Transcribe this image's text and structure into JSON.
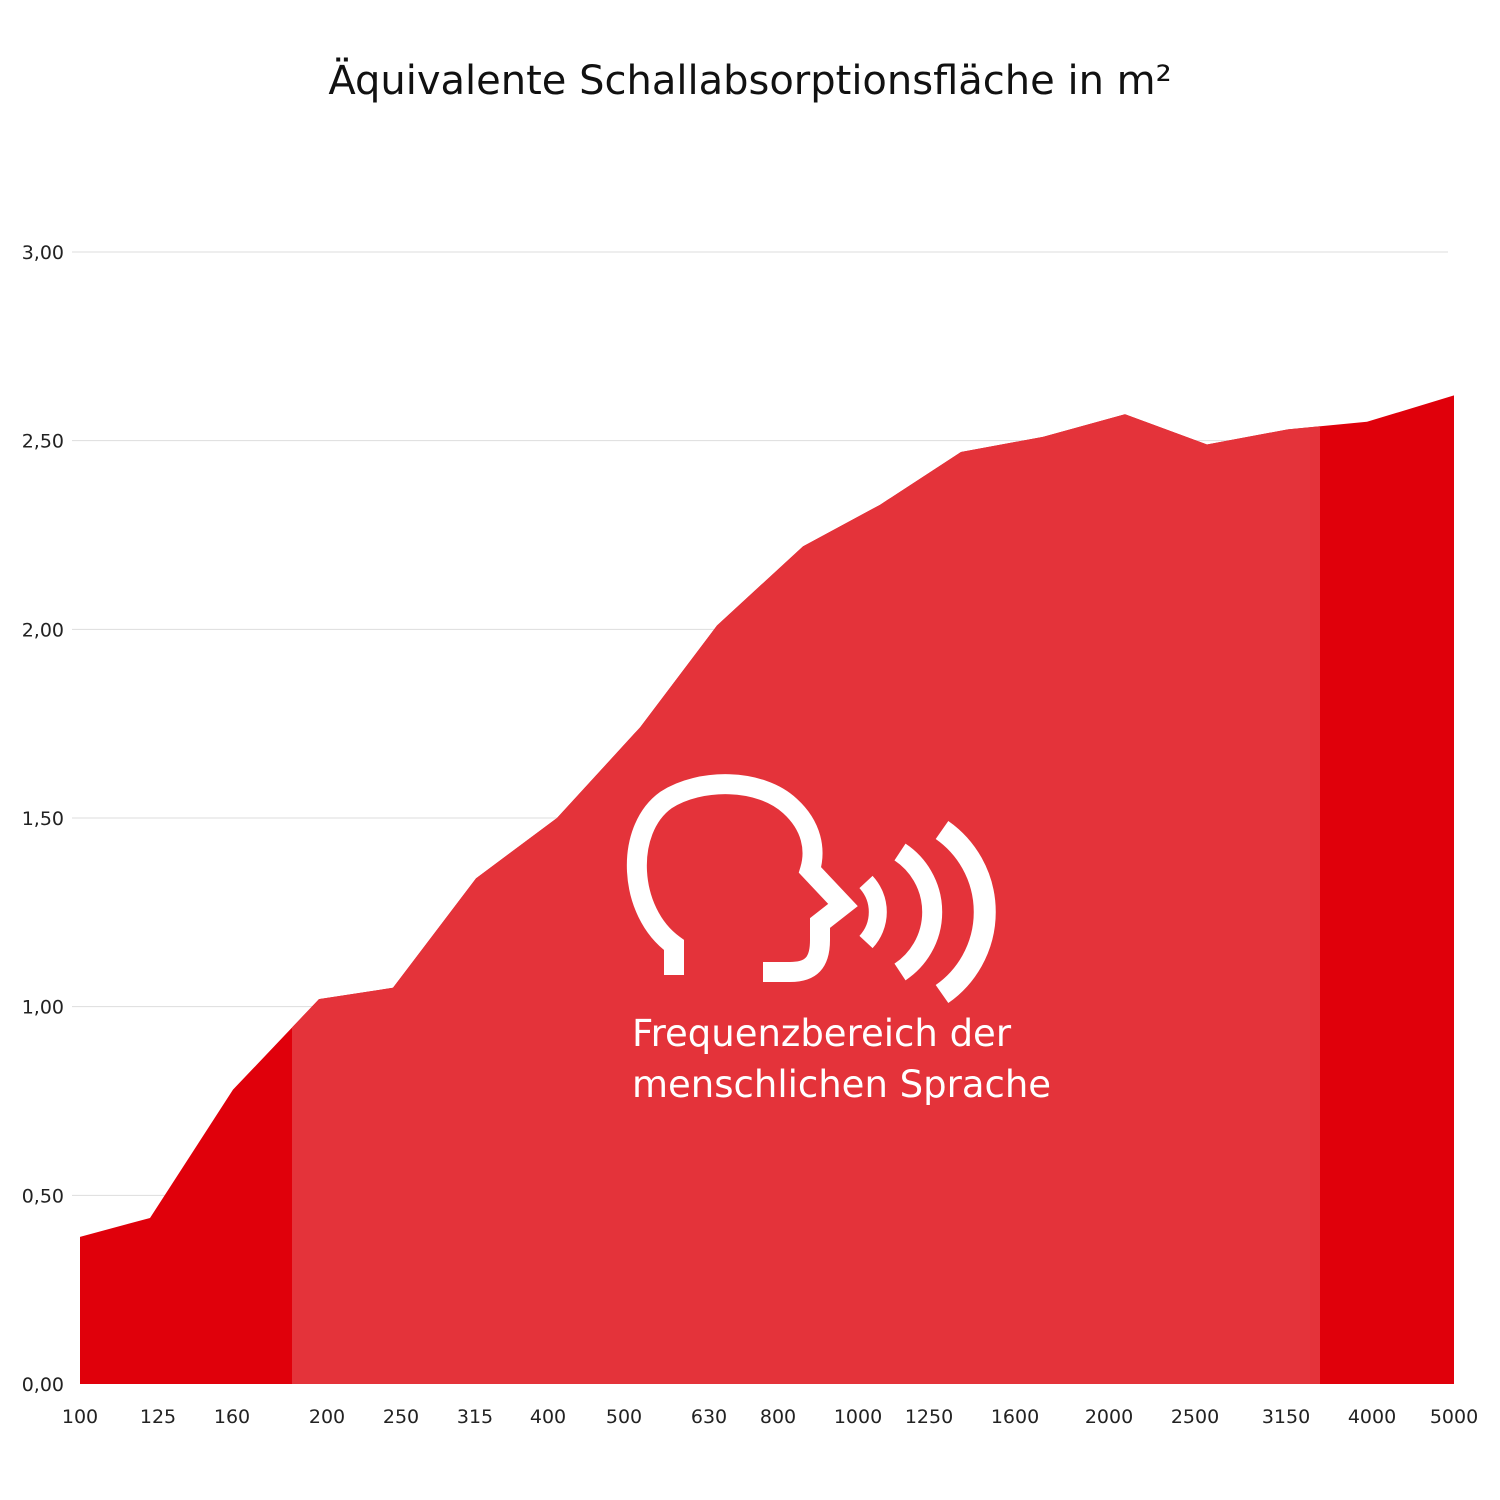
{
  "chart_data": {
    "type": "area",
    "title": "Äquivalente Schallabsorptionsfläche in m²",
    "xlabel": "",
    "ylabel": "",
    "x": [
      "100",
      "125",
      "160",
      "200",
      "250",
      "315",
      "400",
      "500",
      "630",
      "800",
      "1000",
      "1250",
      "1600",
      "2000",
      "2500",
      "3150",
      "4000",
      "5000"
    ],
    "series": [
      {
        "values": [
          0.39,
          0.44,
          0.78,
          1.02,
          1.05,
          1.34,
          1.5,
          1.74,
          2.01,
          2.22,
          2.33,
          2.47,
          2.51,
          2.57,
          2.49,
          2.53,
          2.55,
          2.62
        ]
      }
    ],
    "yticks": [
      "0,00",
      "0,50",
      "1,00",
      "1,50",
      "2,00",
      "2,50",
      "3,00"
    ],
    "ylim": [
      0,
      3
    ],
    "grid": true,
    "highlight": {
      "label_line1": "Frequenzbereich der",
      "label_line2": "menschlichen Sprache",
      "icon": "speaking-head-icon"
    },
    "colors": {
      "outer": "#e0000b",
      "speech_range": "#e4333a",
      "grid": "#dddddd"
    }
  }
}
